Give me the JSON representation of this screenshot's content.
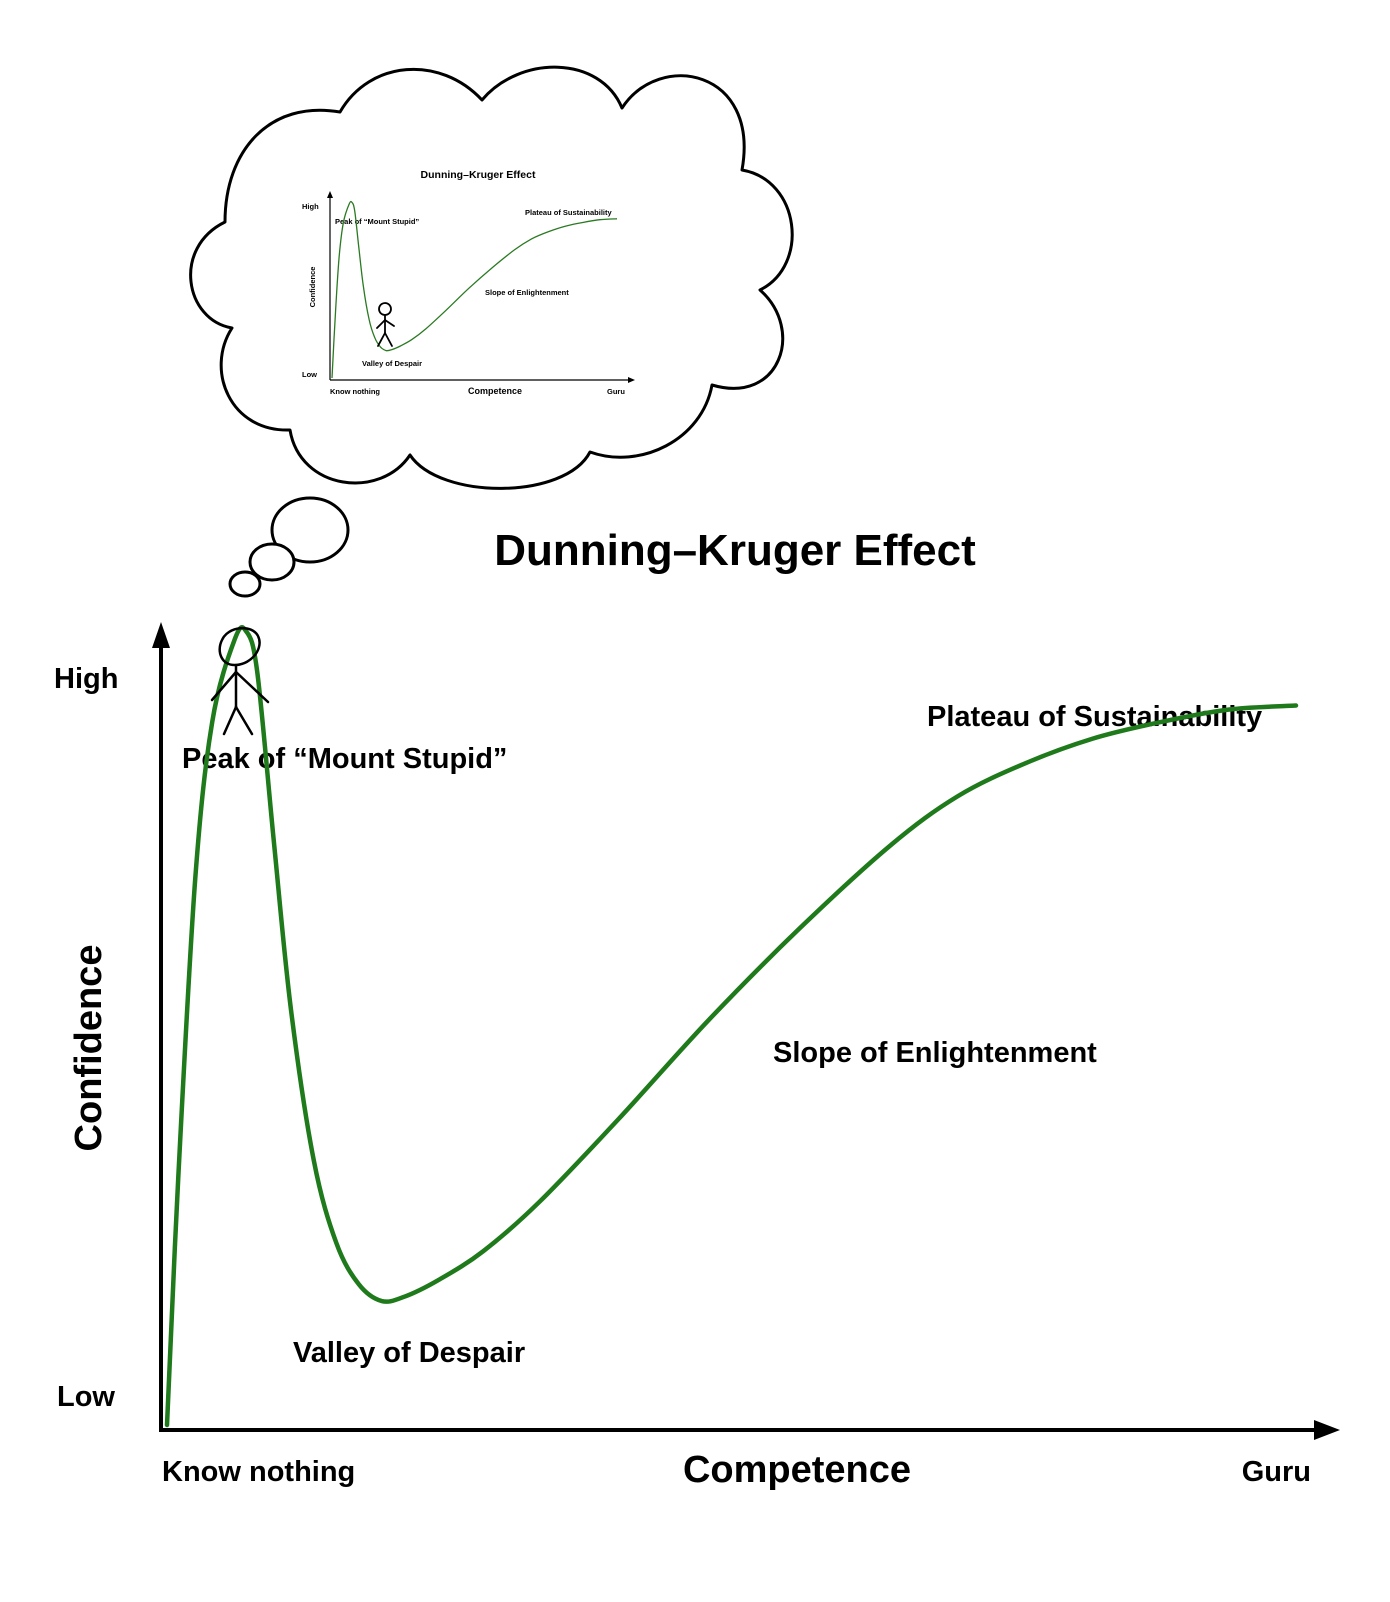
{
  "chart_data": {
    "type": "line",
    "title": "Dunning–Kruger Effect",
    "xlabel": "Competence",
    "ylabel": "Confidence",
    "x_tick_labels": [
      "Know nothing",
      "Guru"
    ],
    "y_tick_labels": [
      "Low",
      "High"
    ],
    "xlim": [
      0,
      100
    ],
    "ylim": [
      0,
      100
    ],
    "grid": false,
    "line_color": "#1e7a1a",
    "series": [
      {
        "x": [
          0,
          1,
          2.5,
          4,
          6,
          7,
          8,
          9.5,
          11,
          13,
          15,
          17,
          19,
          21,
          24,
          28,
          33,
          40,
          48,
          56,
          64,
          70,
          76,
          82,
          88,
          94,
          100
        ],
        "y": [
          0,
          30,
          66,
          85,
          95,
          96,
          91,
          70,
          50,
          32,
          22,
          17,
          15,
          15.5,
          17.5,
          21,
          27,
          37,
          49,
          60,
          70,
          76,
          80,
          83,
          85,
          86.5,
          87
        ]
      }
    ],
    "annotations": [
      {
        "text": "Peak of “Mount Stupid”"
      },
      {
        "text": "Valley of Despair"
      },
      {
        "text": "Slope of Enlightenment"
      },
      {
        "text": "Plateau of Sustainability"
      }
    ]
  },
  "thought_bubble": {
    "title": "Dunning–Kruger Effect",
    "ylabel": "Confidence",
    "xlabel": "Competence",
    "x_tick_labels": [
      "Know nothing",
      "Guru"
    ],
    "y_tick_labels": [
      "Low",
      "High"
    ],
    "annotations": [
      {
        "text": "Peak of “Mount Stupid”"
      },
      {
        "text": "Valley of Despair"
      },
      {
        "text": "Slope of Enlightenment"
      },
      {
        "text": "Plateau of Sustainability"
      }
    ]
  }
}
